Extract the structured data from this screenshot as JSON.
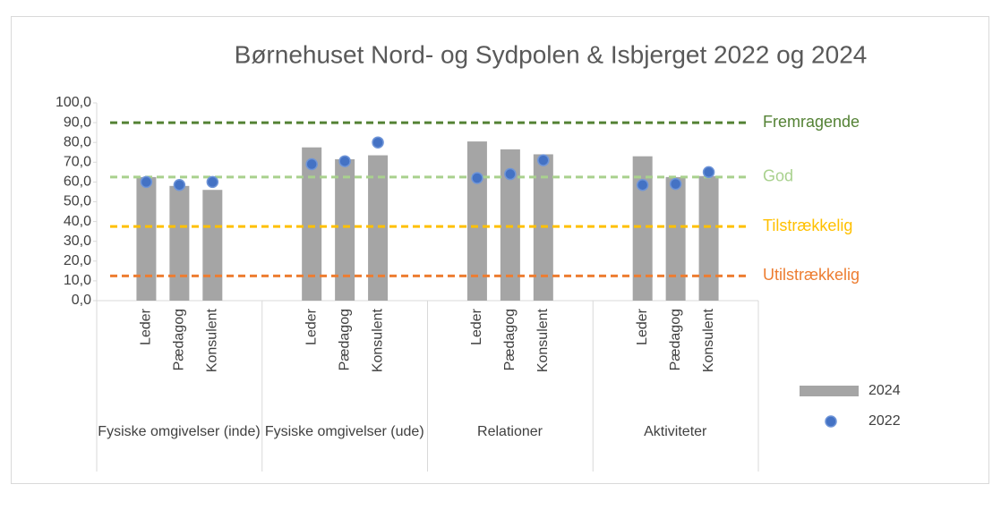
{
  "chart_data": {
    "type": "bar",
    "title": "Børnehuset Nord- og Sydpolen & Isbjerget 2022 og 2024",
    "groups": [
      "Fysiske omgivelser (inde)",
      "Fysiske omgivelser (ude)",
      "Relationer",
      "Aktiviteter"
    ],
    "categories": [
      "Leder",
      "Pædagog",
      "Konsulent",
      "Leder",
      "Pædagog",
      "Konsulent",
      "Leder",
      "Pædagog",
      "Konsulent",
      "Leder",
      "Pædagog",
      "Konsulent"
    ],
    "series": [
      {
        "name": "2024",
        "type": "bar",
        "color": "#a5a5a5",
        "values": [
          62.5,
          58,
          56,
          77.5,
          71.5,
          73.5,
          80.5,
          76.5,
          74,
          73,
          62.5,
          63
        ]
      },
      {
        "name": "2022",
        "type": "scatter",
        "color": "#4472c4",
        "values": [
          60,
          58.5,
          60,
          69,
          70.5,
          80,
          62,
          64,
          71,
          58.5,
          59,
          65
        ]
      }
    ],
    "reference_lines": [
      {
        "label": "Fremragende",
        "value": 90,
        "color": "#548235"
      },
      {
        "label": "God",
        "value": 62.5,
        "color": "#a9d18e"
      },
      {
        "label": "Tilstrækkelig",
        "value": 37.5,
        "color": "#ffc000"
      },
      {
        "label": "Utilstrækkelig",
        "value": 12.5,
        "color": "#ed7d31"
      }
    ],
    "ylim": [
      0,
      100
    ],
    "yticks": [
      {
        "value": 0,
        "label": "0,0"
      },
      {
        "value": 10,
        "label": "10,0"
      },
      {
        "value": 20,
        "label": "20,0"
      },
      {
        "value": 30,
        "label": "30,0"
      },
      {
        "value": 40,
        "label": "40,0"
      },
      {
        "value": 50,
        "label": "50,0"
      },
      {
        "value": 60,
        "label": "60,0"
      },
      {
        "value": 70,
        "label": "70,0"
      },
      {
        "value": 80,
        "label": "80,0"
      },
      {
        "value": 90,
        "label": "90,0"
      },
      {
        "value": 100,
        "label": "100,0"
      }
    ],
    "legend": "right"
  }
}
